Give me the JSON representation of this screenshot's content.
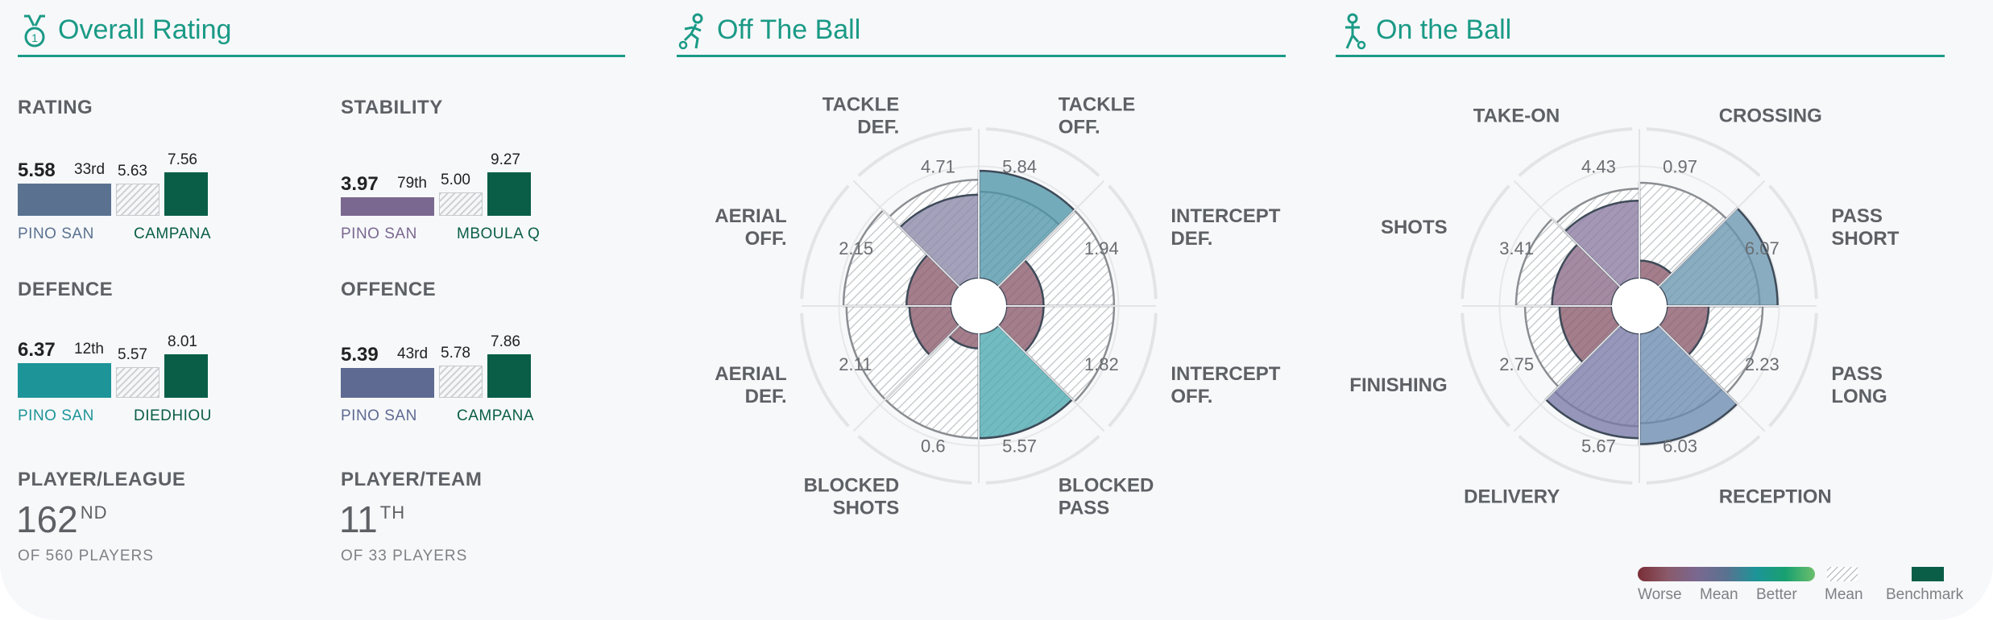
{
  "sections": {
    "overall": {
      "title": "Overall Rating",
      "icon": "medal-icon"
    },
    "off_ball": {
      "title": "Off The Ball",
      "icon": "running-player-icon"
    },
    "on_ball": {
      "title": "On the Ball",
      "icon": "player-with-ball-icon"
    }
  },
  "overall": {
    "metrics": [
      {
        "label": "RATING",
        "player": "PINO SAN",
        "player_value": "5.58",
        "rank": "33rd",
        "mean": "5.63",
        "benchmark": "7.56",
        "benchmark_player": "CAMPANA",
        "player_color": "#5a7290",
        "player_fill": 0.738,
        "mean_fill": 0.745
      },
      {
        "label": "STABILITY",
        "player": "PINO SAN",
        "player_value": "3.97",
        "rank": "79th",
        "mean": "5.00",
        "benchmark": "9.27",
        "benchmark_player": "MBOULA Q",
        "player_color": "#7a6890",
        "player_fill": 0.428,
        "mean_fill": 0.539
      },
      {
        "label": "DEFENCE",
        "player": "PINO SAN",
        "player_value": "6.37",
        "rank": "12th",
        "mean": "5.57",
        "benchmark": "8.01",
        "benchmark_player": "DIEDHIOU",
        "player_color": "#1d9498",
        "player_fill": 0.795,
        "mean_fill": 0.695
      },
      {
        "label": "OFFENCE",
        "player": "PINO SAN",
        "player_value": "5.39",
        "rank": "43rd",
        "mean": "5.78",
        "benchmark": "7.86",
        "benchmark_player": "CAMPANA",
        "player_color": "#5e6a92",
        "player_fill": 0.686,
        "mean_fill": 0.735
      }
    ],
    "ranks": [
      {
        "label": "PLAYER/LEAGUE",
        "value": "162",
        "suffix": "ND",
        "sub": "OF 560 PLAYERS"
      },
      {
        "label": "PLAYER/TEAM",
        "value": "11",
        "suffix": "TH",
        "sub": "OF 33 PLAYERS"
      }
    ]
  },
  "off_ball": {
    "axes": [
      {
        "l1": "TACKLE",
        "l2": "OFF.",
        "value": "5.84",
        "fill": 0.72,
        "mean": 0.58,
        "color": "#4f95a8"
      },
      {
        "l1": "INTERCEPT",
        "l2": "DEF.",
        "value": "1.94",
        "fill": 0.25,
        "mean": 0.72,
        "color": "#8a5a6a"
      },
      {
        "l1": "INTERCEPT",
        "l2": "OFF.",
        "value": "1.82",
        "fill": 0.25,
        "mean": 0.72,
        "color": "#8a5a6a"
      },
      {
        "l1": "BLOCKED",
        "l2": "PASS",
        "value": "5.57",
        "fill": 0.7,
        "mean": 0.7,
        "color": "#4aa8b0"
      },
      {
        "l1": "BLOCKED",
        "l2": "SHOTS",
        "value": "0.6",
        "fill": 0.1,
        "mean": 0.7,
        "color": "#8a5a6a"
      },
      {
        "l1": "AERIAL",
        "l2": "DEF.",
        "value": "2.11",
        "fill": 0.28,
        "mean": 0.7,
        "color": "#8a5a6a"
      },
      {
        "l1": "AERIAL",
        "l2": "OFF.",
        "value": "2.15",
        "fill": 0.3,
        "mean": 0.72,
        "color": "#8a5a6a"
      },
      {
        "l1": "TACKLE",
        "l2": "DEF.",
        "value": "4.71",
        "fill": 0.56,
        "mean": 0.66,
        "color": "#8a86a8"
      }
    ]
  },
  "on_ball": {
    "axes": [
      {
        "l1": "CROSSING",
        "l2": "",
        "value": "0.97",
        "fill": 0.12,
        "mean": 0.64,
        "color": "#8a5a6a"
      },
      {
        "l1": "PASS",
        "l2": "SHORT",
        "value": "6.07",
        "fill": 0.74,
        "mean": 0.62,
        "color": "#6a96b0"
      },
      {
        "l1": "PASS",
        "l2": "LONG",
        "value": "2.23",
        "fill": 0.28,
        "mean": 0.64,
        "color": "#8a5a6a"
      },
      {
        "l1": "RECEPTION",
        "l2": "",
        "value": "6.03",
        "fill": 0.74,
        "mean": 0.6,
        "color": "#6a8ab0"
      },
      {
        "l1": "DELIVERY",
        "l2": "",
        "value": "5.67",
        "fill": 0.7,
        "mean": 0.62,
        "color": "#7a7aa8"
      },
      {
        "l1": "FINISHING",
        "l2": "",
        "value": "2.75",
        "fill": 0.35,
        "mean": 0.58,
        "color": "#8a5a6a"
      },
      {
        "l1": "SHOTS",
        "l2": "",
        "value": "3.41",
        "fill": 0.4,
        "mean": 0.64,
        "color": "#8a6a88"
      },
      {
        "l1": "TAKE-ON",
        "l2": "",
        "value": "4.43",
        "fill": 0.52,
        "mean": 0.6,
        "color": "#8a7aa0"
      }
    ]
  },
  "legend": {
    "worse": "Worse",
    "mean": "Mean",
    "better": "Better",
    "mean_pattern": "Mean",
    "benchmark": "Benchmark",
    "gradient_colors": [
      "#7a2e36",
      "#8a5a6a",
      "#7a6890",
      "#5a7290",
      "#1d9498",
      "#18a070",
      "#6cbf6c"
    ],
    "benchmark_color": "#0a5e48"
  }
}
